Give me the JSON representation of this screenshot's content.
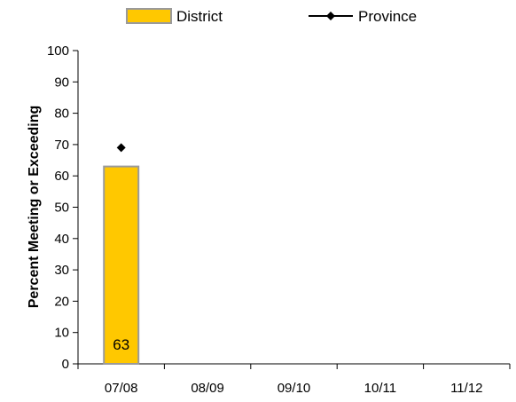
{
  "chart_data": {
    "type": "bar",
    "ylabel": "Percent Meeting or Exceeding",
    "xlabel": "",
    "title": "",
    "categories": [
      "07/08",
      "08/09",
      "09/10",
      "10/11",
      "11/12"
    ],
    "ylim": [
      0,
      100
    ],
    "yticks": [
      0,
      10,
      20,
      30,
      40,
      50,
      60,
      70,
      80,
      90,
      100
    ],
    "grid": false,
    "legend_position": "top",
    "series": [
      {
        "name": "District",
        "kind": "bar",
        "color": "#FFC800",
        "values": [
          63,
          null,
          null,
          null,
          null
        ],
        "data_labels": [
          "63",
          "",
          "",
          "",
          ""
        ]
      },
      {
        "name": "Province",
        "kind": "line",
        "marker": "diamond",
        "color": "#000000",
        "values": [
          69,
          null,
          null,
          null,
          null
        ]
      }
    ]
  }
}
